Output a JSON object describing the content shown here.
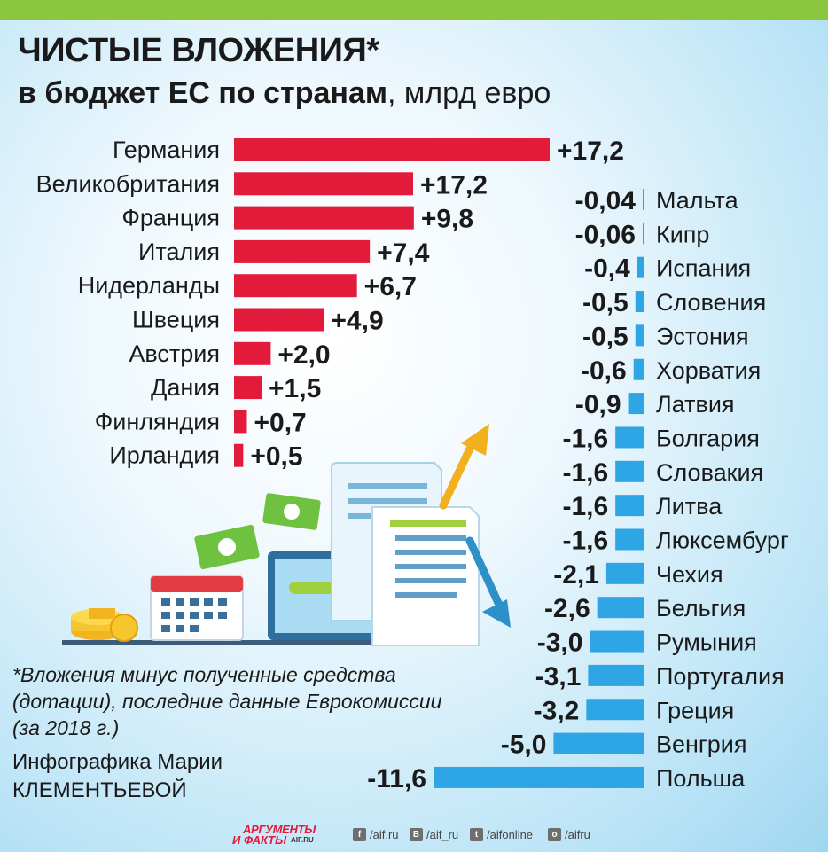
{
  "header": {
    "title": "ЧИСТЫЕ ВЛОЖЕНИЯ*",
    "subtitle_bold": "в бюджет ЕС по странам",
    "subtitle_regular": ", млрд евро"
  },
  "chart_data": [
    {
      "type": "bar",
      "orientation": "horizontal",
      "categories": [
        "Германия",
        "Великобритания",
        "Франция",
        "Италия",
        "Нидерланды",
        "Швеция",
        "Австрия",
        "Дания",
        "Финляндия",
        "Ирландия"
      ],
      "values": [
        17.2,
        17.2,
        9.8,
        7.4,
        6.7,
        4.9,
        2.0,
        1.5,
        0.7,
        0.5
      ],
      "value_labels": [
        "+17,2",
        "+17,2",
        "+9,8",
        "+7,4",
        "+6,7",
        "+4,9",
        "+2,0",
        "+1,5",
        "+0,7",
        "+0,5"
      ],
      "color": "#e31b3a"
    },
    {
      "type": "bar",
      "orientation": "horizontal",
      "categories": [
        "Мальта",
        "Кипр",
        "Испания",
        "Словения",
        "Эстония",
        "Хорватия",
        "Латвия",
        "Болгария",
        "Словакия",
        "Литва",
        "Люксембург",
        "Чехия",
        "Бельгия",
        "Румыния",
        "Португалия",
        "Греция",
        "Венгрия",
        "Польша"
      ],
      "values": [
        -0.04,
        -0.06,
        -0.4,
        -0.5,
        -0.5,
        -0.6,
        -0.9,
        -1.6,
        -1.6,
        -1.6,
        -1.6,
        -2.1,
        -2.6,
        -3.0,
        -3.1,
        -3.2,
        -5.0,
        -11.6
      ],
      "value_labels": [
        "-0,04",
        "-0,06",
        "-0,4",
        "-0,5",
        "-0,5",
        "-0,6",
        "-0,9",
        "-1,6",
        "-1,6",
        "-1,6",
        "-1,6",
        "-2,1",
        "-2,6",
        "-3,0",
        "-3,1",
        "-3,2",
        "-5,0",
        "-11,6"
      ],
      "color": "#2ea6e6"
    }
  ],
  "footnote": "*Вложения минус полученные средства (дотации), последние данные Еврокомиссии (за 2018 г.)",
  "credit": "Инфографика Марии КЛЕМЕНТЬЕВОЙ",
  "footer": {
    "logo_line1": "АРГУМЕНТЫ",
    "logo_line2": "И ФАКТЫ",
    "logo_site": "AIF.RU",
    "social": [
      {
        "icon": "facebook-icon",
        "glyph": "f",
        "text": "/aif.ru"
      },
      {
        "icon": "vk-icon",
        "glyph": "В",
        "text": "/aif_ru"
      },
      {
        "icon": "twitter-icon",
        "glyph": "t",
        "text": "/aifonline"
      },
      {
        "icon": "odnoklassniki-icon",
        "glyph": "о",
        "text": "/aifru"
      }
    ]
  }
}
